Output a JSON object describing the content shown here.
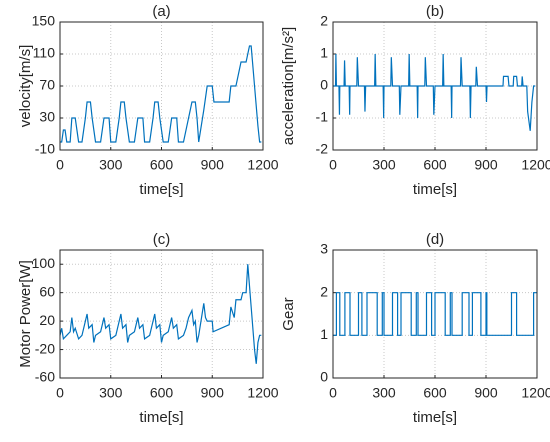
{
  "chart_data": [
    {
      "type": "line",
      "title": "(a)",
      "xlabel": "time[s]",
      "ylabel": "velocity[m/s]",
      "xlim": [
        0,
        1200
      ],
      "xticks": [
        0,
        300,
        600,
        900,
        1200
      ],
      "ylim": [
        -10,
        150
      ],
      "yticks": [
        -10,
        30,
        70,
        110,
        150
      ],
      "grid": true,
      "x": [
        0,
        10,
        20,
        30,
        40,
        60,
        70,
        90,
        100,
        110,
        130,
        150,
        160,
        180,
        190,
        200,
        210,
        240,
        260,
        290,
        300,
        330,
        340,
        350,
        360,
        380,
        390,
        400,
        410,
        440,
        460,
        490,
        500,
        530,
        540,
        550,
        560,
        580,
        590,
        600,
        610,
        640,
        660,
        690,
        700,
        730,
        745,
        760,
        780,
        800,
        810,
        820,
        850,
        870,
        900,
        910,
        1000,
        1010,
        1040,
        1070,
        1100,
        1120,
        1130,
        1150,
        1170,
        1180,
        1190
      ],
      "series": [
        {
          "name": "velocity",
          "color": "#0072bd",
          "values": [
            0,
            0,
            15,
            15,
            0,
            0,
            30,
            30,
            15,
            0,
            0,
            30,
            50,
            50,
            30,
            15,
            0,
            0,
            30,
            30,
            0,
            0,
            15,
            30,
            50,
            50,
            30,
            15,
            0,
            0,
            30,
            30,
            0,
            0,
            15,
            30,
            50,
            50,
            30,
            15,
            0,
            0,
            30,
            30,
            0,
            0,
            15,
            30,
            50,
            50,
            30,
            0,
            40,
            70,
            70,
            50,
            50,
            70,
            70,
            100,
            100,
            120,
            120,
            70,
            20,
            0,
            0
          ]
        }
      ]
    },
    {
      "type": "line",
      "title": "(b)",
      "xlabel": "time[s]",
      "ylabel": "acceleration[m/s²]",
      "xlim": [
        0,
        1200
      ],
      "xticks": [
        0,
        300,
        600,
        900,
        1200
      ],
      "ylim": [
        -2,
        2
      ],
      "yticks": [
        -2,
        -1,
        0,
        1,
        2
      ],
      "grid": true,
      "x": [
        0,
        15,
        17,
        20,
        35,
        38,
        40,
        65,
        68,
        72,
        95,
        98,
        100,
        140,
        143,
        150,
        185,
        188,
        192,
        245,
        248,
        252,
        295,
        298,
        300,
        340,
        343,
        350,
        390,
        393,
        400,
        445,
        448,
        452,
        495,
        498,
        500,
        540,
        543,
        550,
        590,
        593,
        600,
        645,
        648,
        652,
        695,
        698,
        700,
        750,
        753,
        760,
        805,
        808,
        812,
        840,
        843,
        850,
        900,
        903,
        906,
        1000,
        1003,
        1030,
        1035,
        1060,
        1063,
        1080,
        1085,
        1110,
        1113,
        1118,
        1140,
        1145,
        1160,
        1170,
        1180,
        1190
      ],
      "series": [
        {
          "name": "acceleration",
          "color": "#0072bd",
          "values": [
            0,
            0,
            1,
            0,
            0,
            -0.9,
            0,
            0,
            0.8,
            0,
            0,
            -0.9,
            0,
            0,
            0.9,
            0,
            0,
            -0.8,
            0,
            0,
            1,
            0,
            0,
            -1,
            0,
            0,
            0.9,
            0,
            0,
            -0.9,
            0,
            0,
            1,
            0,
            0,
            -1,
            0,
            0,
            0.9,
            0,
            0,
            -0.9,
            0,
            0,
            1,
            0,
            0,
            -1,
            0,
            0,
            0.9,
            0,
            0,
            -1,
            0,
            0,
            0.6,
            0,
            0,
            -0.5,
            0,
            0,
            0.3,
            0.3,
            0,
            0,
            0.3,
            0.3,
            0,
            0,
            0.3,
            0,
            0,
            -0.8,
            -1.4,
            -0.5,
            0,
            0
          ]
        }
      ]
    },
    {
      "type": "line",
      "title": "(c)",
      "xlabel": "time[s]",
      "ylabel": "Motor Power[W]",
      "xlim": [
        0,
        1200
      ],
      "xticks": [
        0,
        300,
        600,
        900,
        1200
      ],
      "ylim": [
        -60,
        120
      ],
      "yticks": [
        -60,
        -20,
        20,
        60,
        100
      ],
      "grid": true,
      "x": [
        0,
        10,
        20,
        40,
        60,
        70,
        80,
        90,
        110,
        130,
        150,
        160,
        170,
        190,
        200,
        210,
        240,
        260,
        270,
        290,
        300,
        330,
        340,
        350,
        360,
        370,
        390,
        400,
        410,
        440,
        460,
        470,
        490,
        500,
        530,
        540,
        550,
        560,
        570,
        590,
        600,
        610,
        640,
        660,
        670,
        690,
        700,
        730,
        745,
        760,
        780,
        790,
        800,
        810,
        820,
        840,
        850,
        860,
        870,
        900,
        905,
        1000,
        1010,
        1030,
        1040,
        1070,
        1080,
        1100,
        1110,
        1120,
        1130,
        1150,
        1160,
        1170,
        1180,
        1190
      ],
      "series": [
        {
          "name": "power",
          "color": "#0072bd",
          "values": [
            0,
            10,
            -5,
            0,
            5,
            25,
            5,
            10,
            -5,
            0,
            20,
            30,
            10,
            15,
            -10,
            0,
            5,
            25,
            10,
            15,
            -5,
            0,
            10,
            20,
            30,
            10,
            15,
            -10,
            0,
            5,
            25,
            10,
            15,
            -5,
            0,
            10,
            20,
            30,
            10,
            15,
            -10,
            0,
            5,
            25,
            10,
            15,
            -5,
            0,
            10,
            25,
            35,
            15,
            20,
            -10,
            0,
            30,
            45,
            25,
            20,
            20,
            5,
            15,
            40,
            25,
            50,
            50,
            60,
            60,
            100,
            70,
            40,
            -20,
            -40,
            -10,
            0,
            0
          ]
        }
      ]
    },
    {
      "type": "step",
      "title": "(d)",
      "xlabel": "time[s]",
      "ylabel": "Gear",
      "xlim": [
        0,
        1200
      ],
      "xticks": [
        0,
        300,
        600,
        900,
        1200
      ],
      "ylim": [
        0,
        3
      ],
      "yticks": [
        0,
        1,
        2,
        3
      ],
      "grid": true,
      "x": [
        0,
        20,
        40,
        70,
        100,
        150,
        170,
        200,
        260,
        290,
        300,
        350,
        380,
        400,
        460,
        490,
        500,
        550,
        580,
        600,
        660,
        690,
        700,
        760,
        800,
        820,
        870,
        900,
        905,
        1050,
        1080,
        1180,
        1200
      ],
      "series": [
        {
          "name": "gear",
          "color": "#0072bd",
          "values": [
            1,
            2,
            1,
            2,
            1,
            2,
            1,
            2,
            1,
            2,
            1,
            2,
            1,
            2,
            1,
            2,
            1,
            2,
            1,
            2,
            1,
            2,
            1,
            2,
            1,
            2,
            1,
            2,
            1,
            2,
            1,
            2,
            2
          ]
        }
      ]
    }
  ]
}
